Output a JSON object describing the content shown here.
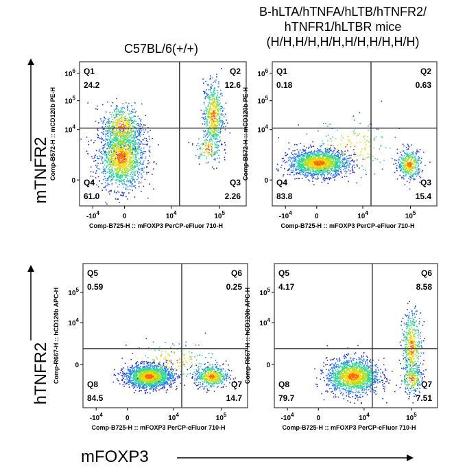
{
  "column_titles": [
    "C57BL/6(+/+)",
    "B-hLTA/hTNFA/hLTB/hTNFR2/\nhTNFR1/hLTBR mice\n(H/H,H/H,H/H,H/H,H/H,H/H)"
  ],
  "row_titles": [
    "mTNFR2",
    "hTNFR2"
  ],
  "x_title": "mFOXP3",
  "colors": {
    "gate": "#3a3a3a",
    "density_low": "#1f2fd6",
    "density_mid": "#2fd6a0",
    "density_high": "#ff6a00"
  },
  "chart_data": [
    {
      "type": "scatter",
      "title": "C57BL/6(+/+)",
      "xlabel": "Comp-B725-H :: mFOXP3 PerCP-eFluor 710-H",
      "ylabel": "Comp-B572-H :: mCD120b PE-H",
      "x_ticks": [
        "-10^4",
        "0",
        "10^4",
        "10^5"
      ],
      "y_ticks": [
        "0",
        "10^4",
        "10^5",
        "10^6"
      ],
      "quadrants": [
        {
          "name": "Q1",
          "value": "24.2"
        },
        {
          "name": "Q2",
          "value": "12.6"
        },
        {
          "name": "Q3",
          "value": "2.26"
        },
        {
          "name": "Q4",
          "value": "61.0"
        }
      ],
      "populations": [
        {
          "cx": 0.25,
          "cy": 0.34,
          "sx": 0.07,
          "sy": 0.11,
          "n": 1500
        },
        {
          "cx": 0.25,
          "cy": 0.55,
          "sx": 0.06,
          "sy": 0.08,
          "n": 500
        },
        {
          "cx": 0.8,
          "cy": 0.63,
          "sx": 0.03,
          "sy": 0.12,
          "n": 550
        },
        {
          "cx": 0.77,
          "cy": 0.4,
          "sx": 0.04,
          "sy": 0.05,
          "n": 120
        }
      ]
    },
    {
      "type": "scatter",
      "title": "B-hLTA/hTNFA/hLTB/hTNFR2/hTNFR1/hLTBR mice (H/H,H/H,H/H,H/H,H/H,H/H)",
      "xlabel": "Comp-B725-H :: mFOXP3 PerCP-eFluor 710-H",
      "ylabel": "Comp-B572-H :: mCD120b PE-H",
      "x_ticks": [
        "-10^4",
        "0",
        "10^4",
        "10^5"
      ],
      "y_ticks": [
        "0",
        "10^4",
        "10^5",
        "10^6"
      ],
      "quadrants": [
        {
          "name": "Q1",
          "value": "0.18"
        },
        {
          "name": "Q2",
          "value": "0.63"
        },
        {
          "name": "Q3",
          "value": "15.4"
        },
        {
          "name": "Q4",
          "value": "83.8"
        }
      ],
      "populations": [
        {
          "cx": 0.28,
          "cy": 0.3,
          "sx": 0.09,
          "sy": 0.045,
          "n": 1700
        },
        {
          "cx": 0.83,
          "cy": 0.29,
          "sx": 0.035,
          "sy": 0.05,
          "n": 400
        },
        {
          "cx": 0.48,
          "cy": 0.4,
          "sx": 0.15,
          "sy": 0.1,
          "n": 150
        }
      ]
    },
    {
      "type": "scatter",
      "title": "C57BL/6(+/+)",
      "xlabel": "Comp-B725-H :: mFOXP3 PerCP-eFluor 710-H",
      "ylabel": "Comp-R667-H :: hCD120b APC-H",
      "x_ticks": [
        "-10^4",
        "0",
        "10^4",
        "10^5"
      ],
      "y_ticks": [
        "0",
        "10^4",
        "10^5"
      ],
      "quadrants": [
        {
          "name": "Q5",
          "value": "0.59"
        },
        {
          "name": "Q6",
          "value": "0.25"
        },
        {
          "name": "Q7",
          "value": "14.7"
        },
        {
          "name": "Q8",
          "value": "84.5"
        }
      ],
      "populations": [
        {
          "cx": 0.4,
          "cy": 0.22,
          "sx": 0.07,
          "sy": 0.04,
          "n": 1700
        },
        {
          "cx": 0.78,
          "cy": 0.22,
          "sx": 0.05,
          "sy": 0.04,
          "n": 500
        },
        {
          "cx": 0.55,
          "cy": 0.33,
          "sx": 0.12,
          "sy": 0.07,
          "n": 150
        }
      ]
    },
    {
      "type": "scatter",
      "title": "B-hLTA/hTNFA/hLTB/hTNFR2/hTNFR1/hLTBR mice (H/H,H/H,H/H,H/H,H/H,H/H)",
      "xlabel": "Comp-B725-H :: mFOXP3 PerCP-eFluor 710-H",
      "ylabel": "Comp-R667-H :: hCD120b APC-H",
      "x_ticks": [
        "-10^4",
        "0",
        "10^4",
        "10^5"
      ],
      "y_ticks": [
        "0",
        "10^4",
        "10^5"
      ],
      "quadrants": [
        {
          "name": "Q5",
          "value": "4.17"
        },
        {
          "name": "Q6",
          "value": "8.58"
        },
        {
          "name": "Q7",
          "value": "7.51"
        },
        {
          "name": "Q8",
          "value": "79.7"
        }
      ],
      "populations": [
        {
          "cx": 0.48,
          "cy": 0.22,
          "sx": 0.08,
          "sy": 0.06,
          "n": 1500
        },
        {
          "cx": 0.84,
          "cy": 0.42,
          "sx": 0.03,
          "sy": 0.13,
          "n": 450
        },
        {
          "cx": 0.84,
          "cy": 0.2,
          "sx": 0.035,
          "sy": 0.05,
          "n": 200
        }
      ]
    }
  ]
}
